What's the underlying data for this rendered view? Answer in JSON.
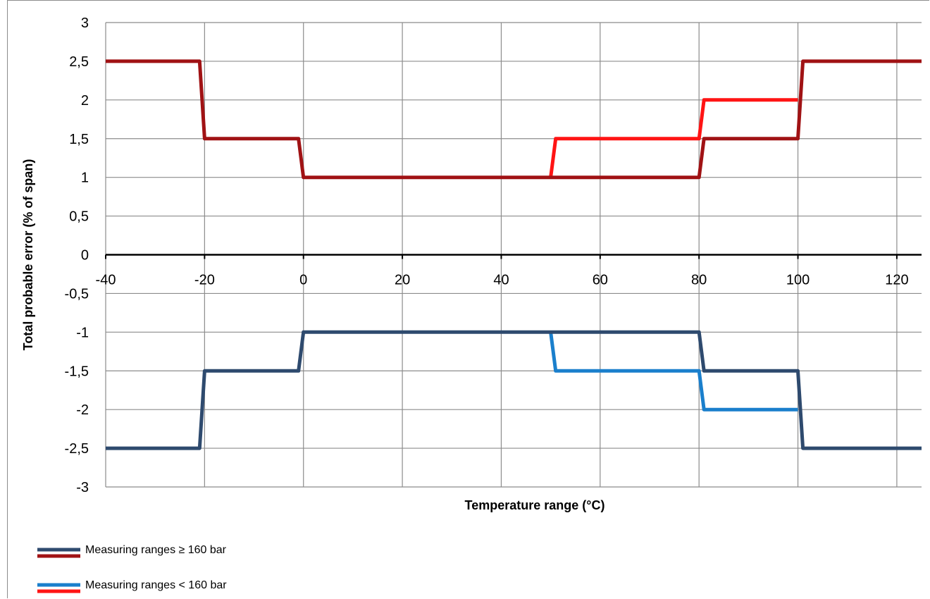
{
  "chart_data": {
    "type": "line",
    "xlabel": "Temperature range (°C)",
    "ylabel": "Total probable error (% of span)",
    "xlim": [
      -40,
      125
    ],
    "ylim": [
      -3,
      3
    ],
    "x_ticks": [
      "-40",
      "-20",
      "0",
      "20",
      "40",
      "60",
      "80",
      "100",
      "120"
    ],
    "y_ticks": [
      "3",
      "2,5",
      "2",
      "1,5",
      "1",
      "0,5",
      "0",
      "-0,5",
      "-1",
      "-1,5",
      "-2",
      "-2,5",
      "-3"
    ],
    "grid": true,
    "legend_position": "bottom-left",
    "legend": [
      {
        "label": "Measuring ranges ≥ 160 bar",
        "colors": [
          "#2e4a6e",
          "#a01214"
        ]
      },
      {
        "label": "Measuring ranges < 160 bar",
        "colors": [
          "#1a7fcc",
          "#ff1414"
        ]
      }
    ],
    "series": [
      {
        "color": "#ff1414",
        "points": [
          [
            50,
            1
          ],
          [
            51,
            1.5
          ],
          [
            80,
            1.5
          ],
          [
            81,
            2
          ],
          [
            100,
            2
          ]
        ]
      },
      {
        "color": "#1a7fcc",
        "points": [
          [
            50,
            -1
          ],
          [
            51,
            -1.5
          ],
          [
            80,
            -1.5
          ],
          [
            81,
            -2
          ],
          [
            100,
            -2
          ]
        ]
      },
      {
        "color": "#a01214",
        "points": [
          [
            -40,
            2.5
          ],
          [
            -21,
            2.5
          ],
          [
            -20,
            1.5
          ],
          [
            -1,
            1.5
          ],
          [
            0,
            1
          ],
          [
            80,
            1
          ],
          [
            81,
            1.5
          ],
          [
            100,
            1.5
          ],
          [
            101,
            2.5
          ],
          [
            125,
            2.5
          ]
        ]
      },
      {
        "color": "#2e4a6e",
        "points": [
          [
            -40,
            -2.5
          ],
          [
            -21,
            -2.5
          ],
          [
            -20,
            -1.5
          ],
          [
            -1,
            -1.5
          ],
          [
            0,
            -1
          ],
          [
            80,
            -1
          ],
          [
            81,
            -1.5
          ],
          [
            100,
            -1.5
          ],
          [
            101,
            -2.5
          ],
          [
            125,
            -2.5
          ]
        ]
      }
    ]
  }
}
